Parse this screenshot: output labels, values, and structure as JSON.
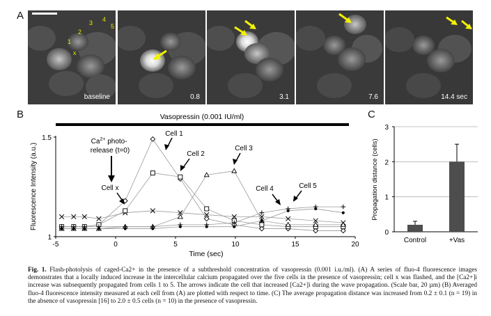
{
  "panel_a": {
    "letter": "A",
    "frames": [
      {
        "label": "baseline"
      },
      {
        "label": "0.8"
      },
      {
        "label": "3.1"
      },
      {
        "label": "7.6"
      },
      {
        "label": "14.4 sec"
      }
    ],
    "cell_labels": [
      "1",
      "2",
      "3",
      "4",
      "5",
      "x"
    ]
  },
  "panel_b": {
    "letter": "B",
    "bar_label": "Vasopressin (0.001 IU/ml)",
    "annotation_flash": "Ca2+ photo-\nrelease (t=0)",
    "annotations": [
      "Cell x",
      "Cell 1",
      "Cell 2",
      "Cell 3",
      "Cell 4",
      "Cell 5"
    ]
  },
  "panel_c": {
    "letter": "C"
  },
  "chart_data": [
    {
      "type": "line",
      "xlabel": "Time (sec)",
      "ylabel": "Fluorescence Intensity (a.u.)",
      "xlim": [
        -5,
        20
      ],
      "ylim": [
        1,
        1.5
      ],
      "x_ticks": [
        -5,
        0,
        5,
        10,
        15,
        20
      ],
      "y_ticks": [
        1,
        1.5
      ],
      "markers": {
        "Cell x": "x",
        "Cell 1": "diamond",
        "Cell 2": "square",
        "Cell 3": "triangle",
        "Cell 4": "plus",
        "Cell 5": "circle"
      },
      "series": [
        {
          "name": "Cell x",
          "x": [
            -4.5,
            -3.5,
            -2.6,
            -1.4,
            0.8,
            3.1,
            5.4,
            7.6,
            9.9,
            12.2,
            14.4,
            16.7,
            19.0
          ],
          "y": [
            1.1,
            1.1,
            1.1,
            1.09,
            1.12,
            1.13,
            1.12,
            1.11,
            1.1,
            1.1,
            1.09,
            1.08,
            1.07
          ]
        },
        {
          "name": "Cell 1",
          "x": [
            -4.5,
            -3.5,
            -2.6,
            -1.4,
            0.8,
            3.1,
            5.4,
            7.6,
            9.9,
            12.2,
            14.4,
            16.7,
            19.0
          ],
          "y": [
            1.05,
            1.05,
            1.05,
            1.06,
            1.18,
            1.49,
            1.29,
            1.09,
            1.06,
            1.04,
            1.04,
            1.03,
            1.03
          ]
        },
        {
          "name": "Cell 2",
          "x": [
            -4.5,
            -3.5,
            -2.6,
            -1.4,
            0.8,
            3.1,
            5.4,
            7.6,
            9.9,
            12.2,
            14.4,
            16.7,
            19.0
          ],
          "y": [
            1.05,
            1.05,
            1.05,
            1.06,
            1.13,
            1.32,
            1.3,
            1.14,
            1.08,
            1.06,
            1.05,
            1.05,
            1.05
          ]
        },
        {
          "name": "Cell 3",
          "x": [
            -4.5,
            -3.5,
            -2.6,
            -1.4,
            0.8,
            3.1,
            5.4,
            7.6,
            9.9,
            12.2,
            14.4,
            16.7,
            19.0
          ],
          "y": [
            1.04,
            1.04,
            1.04,
            1.04,
            1.05,
            1.05,
            1.1,
            1.31,
            1.33,
            1.08,
            1.06,
            1.06,
            1.06
          ]
        },
        {
          "name": "Cell 4",
          "x": [
            -4.5,
            -3.5,
            -2.6,
            -1.4,
            0.8,
            3.1,
            5.4,
            7.6,
            9.9,
            12.2,
            14.4,
            16.7,
            19.0
          ],
          "y": [
            1.05,
            1.05,
            1.05,
            1.05,
            1.05,
            1.05,
            1.06,
            1.06,
            1.07,
            1.12,
            1.14,
            1.15,
            1.15
          ]
        },
        {
          "name": "Cell 5",
          "x": [
            -4.5,
            -3.5,
            -2.6,
            -1.4,
            0.8,
            3.1,
            5.4,
            7.6,
            9.9,
            12.2,
            14.4,
            16.7,
            19.0
          ],
          "y": [
            1.04,
            1.04,
            1.04,
            1.04,
            1.04,
            1.04,
            1.05,
            1.05,
            1.05,
            1.08,
            1.13,
            1.14,
            1.12
          ]
        }
      ]
    },
    {
      "type": "bar",
      "ylabel": "Propagation distance (cells)",
      "categories": [
        "Control",
        "+Vas"
      ],
      "values": [
        0.2,
        2.0
      ],
      "errors": [
        0.1,
        0.5
      ],
      "ylim": [
        0,
        3
      ],
      "y_ticks": [
        0,
        1,
        2,
        3
      ],
      "bar_color": "#4d4d4d"
    }
  ],
  "caption": {
    "fig_label": "Fig. 1.",
    "text": "Flash-photolysis of caged-Ca2+ in the presence of a subthreshold concentration of vasopressin (0.001 i.u./ml). (A) A series of fluo-4 fluorescence images demonstrates that a locally induced increase in the intercellular calcium propagated over the five cells in the presence of vasopressin; cell x was flashed, and the [Ca2+]i increase was subsequently propagated from cells 1 to 5. The arrows indicate the cell that increased [Ca2+]i during the wave propagation. (Scale bar, 20 µm) (B) Averaged fluo-4 fluorescence intensity measured at each cell from (A) are plotted with respect to time. (C) The average propagation distance was increased from 0.2 ± 0.1 (n = 19) in the absence of vasopressin [16] to 2.0 ± 0.5 cells (n = 10) in the presence of vasopressin."
  }
}
